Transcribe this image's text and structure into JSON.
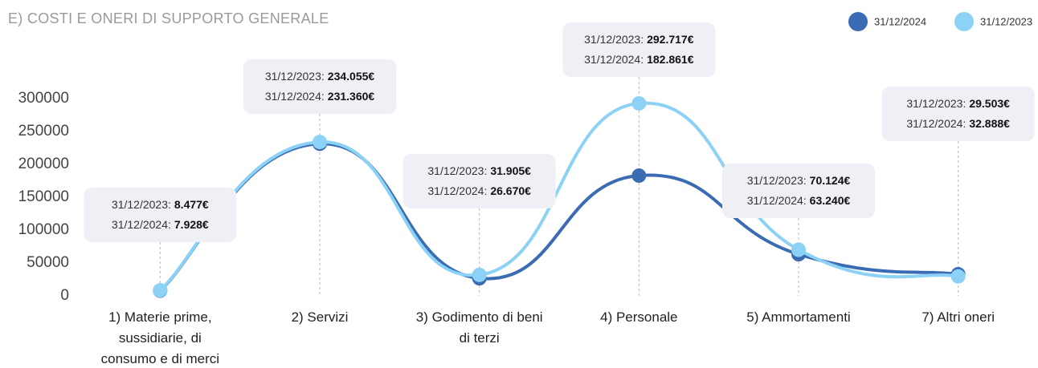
{
  "chart_data": {
    "type": "line",
    "title": "E) COSTI E ONERI DI SUPPORTO GENERALE",
    "categories": [
      "1) Materie prime, sussidiarie, di consumo e di merci",
      "2) Servizi",
      "3) Godimento di beni di terzi",
      "4) Personale",
      "5) Ammortamenti",
      "7) Altri oneri"
    ],
    "series": [
      {
        "name": "31/12/2024",
        "tooltip_label": "31/12/2024:",
        "color": "#3b6cb3",
        "values": [
          7928,
          231360,
          26670,
          182861,
          63240,
          32888
        ],
        "value_labels": [
          "7.928€",
          "231.360€",
          "26.670€",
          "182.861€",
          "63.240€",
          "32.888€"
        ]
      },
      {
        "name": "31/12/2023",
        "tooltip_label": "31/12/2023:",
        "color": "#8cd2f6",
        "values": [
          8477,
          234055,
          31905,
          292717,
          70124,
          29503
        ],
        "value_labels": [
          "8.477€",
          "234.055€",
          "31.905€",
          "292.717€",
          "70.124€",
          "29.503€"
        ]
      }
    ],
    "ylim": [
      0,
      300000
    ],
    "yticks": [
      0,
      50000,
      100000,
      150000,
      200000,
      250000,
      300000
    ],
    "legend": "top-right"
  }
}
